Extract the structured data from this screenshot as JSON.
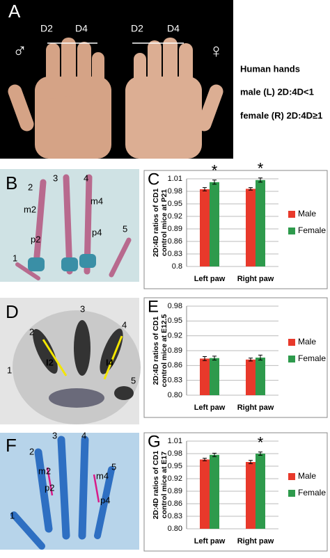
{
  "panel_a": {
    "label": "A",
    "finger_labels": [
      "D2",
      "D4",
      "D2",
      "D4"
    ],
    "symbols": [
      "♂",
      "♀"
    ],
    "caption": [
      "Human hands",
      "male (L) 2D:4D<1",
      "female (R) 2D:4D≥1"
    ]
  },
  "panel_b": {
    "label": "B",
    "labels": [
      "1",
      "2",
      "3",
      "4",
      "5",
      "m2",
      "p2",
      "m4",
      "p4"
    ]
  },
  "panel_d": {
    "label": "D",
    "labels": [
      "1",
      "2",
      "3",
      "4",
      "5",
      "I2",
      "I4"
    ]
  },
  "panel_f": {
    "label": "F",
    "labels": [
      "1",
      "2",
      "3",
      "4",
      "5",
      "m2",
      "p2",
      "m4",
      "p4"
    ]
  },
  "chart_data": [
    {
      "type": "bar",
      "panel_label": "C",
      "ylabel_lines": [
        "2D:4D ratios of CD1",
        "control mice at P21"
      ],
      "categories": [
        "Left paw",
        "Right paw"
      ],
      "series": [
        {
          "name": "Male",
          "color": "#e8392b",
          "values": [
            0.985,
            0.986
          ],
          "errors": [
            0.004,
            0.003
          ]
        },
        {
          "name": "Female",
          "color": "#2e9a4c",
          "values": [
            1.002,
            1.007
          ],
          "errors": [
            0.005,
            0.005
          ]
        }
      ],
      "ylim": [
        0.8,
        1.01
      ],
      "yticks": [
        0.8,
        0.83,
        0.86,
        0.89,
        0.92,
        0.95,
        0.98,
        1.01
      ],
      "grid": true,
      "legend": "right",
      "annotations": [
        {
          "text": "*",
          "series": 1,
          "index": 0
        },
        {
          "text": "*",
          "series": 1,
          "index": 1
        }
      ]
    },
    {
      "type": "bar",
      "panel_label": "E",
      "ylabel_lines": [
        "2D:4D ratios of CD1",
        "control mice at E12.5"
      ],
      "categories": [
        "Left paw",
        "Right paw"
      ],
      "series": [
        {
          "name": "Male",
          "color": "#e8392b",
          "values": [
            0.874,
            0.872
          ],
          "errors": [
            0.004,
            0.003
          ]
        },
        {
          "name": "Female",
          "color": "#2e9a4c",
          "values": [
            0.875,
            0.876
          ],
          "errors": [
            0.004,
            0.005
          ]
        }
      ],
      "ylim": [
        0.8,
        0.98
      ],
      "yticks": [
        {
          "value": 0.8,
          "label": "0.80"
        },
        0.83,
        0.86,
        0.89,
        0.92,
        0.95,
        0.98
      ],
      "grid": true,
      "legend": "right",
      "annotations": []
    },
    {
      "type": "bar",
      "panel_label": "G",
      "ylabel_lines": [
        "2D:4D ratios of CD1",
        "control mice at E17"
      ],
      "categories": [
        "Left paw",
        "Right paw"
      ],
      "series": [
        {
          "name": "Male",
          "color": "#e8392b",
          "values": [
            0.966,
            0.96
          ],
          "errors": [
            0.003,
            0.004
          ]
        },
        {
          "name": "Female",
          "color": "#2e9a4c",
          "values": [
            0.977,
            0.98
          ],
          "errors": [
            0.004,
            0.004
          ]
        }
      ],
      "ylim": [
        0.8,
        1.01
      ],
      "yticks": [
        {
          "value": 0.8,
          "label": "0.80"
        },
        0.83,
        0.86,
        0.89,
        0.92,
        0.95,
        0.98,
        1.01
      ],
      "grid": true,
      "legend": "right",
      "annotations": [
        {
          "text": "*",
          "series": 1,
          "index": 1
        }
      ]
    }
  ]
}
